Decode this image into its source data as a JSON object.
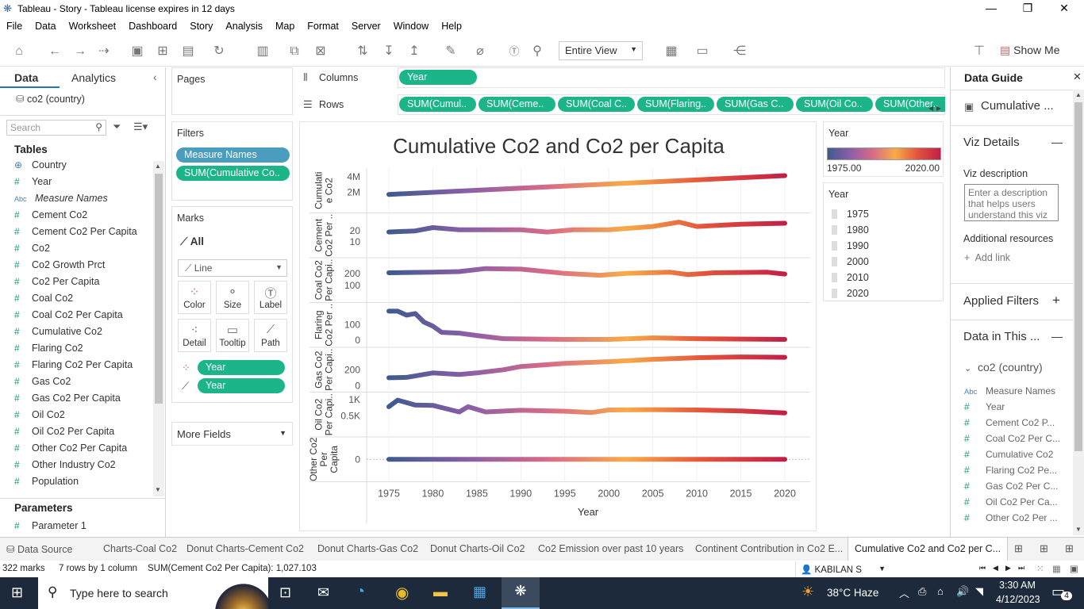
{
  "window": {
    "title": "Tableau - Story - Tableau license expires in 12 days"
  },
  "menu": [
    "File",
    "Data",
    "Worksheet",
    "Dashboard",
    "Story",
    "Analysis",
    "Map",
    "Format",
    "Server",
    "Window",
    "Help"
  ],
  "toolbar": {
    "view_select": "Entire View",
    "show_me": "Show Me"
  },
  "left_panel": {
    "tab_data": "Data",
    "tab_analytics": "Analytics",
    "datasource": "co2 (country)",
    "search_placeholder": "Search",
    "tables_title": "Tables",
    "fields": [
      {
        "type": "geo",
        "name": "Country"
      },
      {
        "type": "num",
        "name": "Year"
      },
      {
        "type": "abc",
        "name": "Measure Names"
      },
      {
        "type": "num",
        "name": "Cement Co2"
      },
      {
        "type": "num",
        "name": "Cement Co2 Per Capita"
      },
      {
        "type": "num",
        "name": "Co2"
      },
      {
        "type": "num",
        "name": "Co2 Growth Prct"
      },
      {
        "type": "num",
        "name": "Co2 Per Capita"
      },
      {
        "type": "num",
        "name": "Coal Co2"
      },
      {
        "type": "num",
        "name": "Coal Co2 Per Capita"
      },
      {
        "type": "num",
        "name": "Cumulative Co2"
      },
      {
        "type": "num",
        "name": "Flaring Co2"
      },
      {
        "type": "num",
        "name": "Flaring Co2 Per Capita"
      },
      {
        "type": "num",
        "name": "Gas Co2"
      },
      {
        "type": "num",
        "name": "Gas Co2 Per Capita"
      },
      {
        "type": "num",
        "name": "Oil Co2"
      },
      {
        "type": "num",
        "name": "Oil Co2 Per Capita"
      },
      {
        "type": "num",
        "name": "Other Co2 Per Capita"
      },
      {
        "type": "num",
        "name": "Other Industry Co2"
      },
      {
        "type": "num",
        "name": "Population"
      }
    ],
    "params_title": "Parameters",
    "param": "Parameter 1"
  },
  "shelves": {
    "pages": "Pages",
    "filters": "Filters",
    "filter_pills": [
      "Measure Names",
      "SUM(Cumulative Co.."
    ],
    "marks": "Marks",
    "marks_all": "All",
    "mark_type": "Line",
    "mark_btns": [
      "Color",
      "Size",
      "Label",
      "Detail",
      "Tooltip",
      "Path"
    ],
    "mark_pills": [
      "Year",
      "Year"
    ],
    "more_fields": "More Fields",
    "columns": "Columns",
    "rows": "Rows",
    "col_pill": "Year",
    "row_pills": [
      "SUM(Cumul..",
      "SUM(Ceme..",
      "SUM(Coal C..",
      "SUM(Flaring..",
      "SUM(Gas C..",
      "SUM(Oil Co..",
      "SUM(Other.."
    ]
  },
  "legend": {
    "title": "Year",
    "min": "1975.00",
    "max": "2020.00",
    "filter_title": "Year",
    "filter_items": [
      "1975",
      "1980",
      "1990",
      "2000",
      "2010",
      "2020"
    ]
  },
  "data_guide": {
    "title": "Data Guide",
    "sheet": "Cumulative ...",
    "viz_details": "Viz Details",
    "viz_desc_label": "Viz description",
    "viz_desc_placeholder": "Enter a description that helps users understand this viz",
    "additional": "Additional resources",
    "add_link": "Add link",
    "applied_filters": "Applied Filters",
    "data_in": "Data in This ...",
    "source": "co2 (country)",
    "fields": [
      {
        "t": "Abc",
        "n": "Measure Names"
      },
      {
        "t": "#",
        "n": "Year"
      },
      {
        "t": "#",
        "n": "Cement Co2 P..."
      },
      {
        "t": "#",
        "n": "Coal Co2 Per C..."
      },
      {
        "t": "#",
        "n": "Cumulative Co2"
      },
      {
        "t": "#",
        "n": "Flaring Co2 Pe..."
      },
      {
        "t": "#",
        "n": "Gas Co2 Per C..."
      },
      {
        "t": "#",
        "n": "Oil Co2 Per Ca..."
      },
      {
        "t": "#",
        "n": "Other Co2 Per ..."
      }
    ]
  },
  "tabs": {
    "datasource": "Data Source",
    "items": [
      "Charts-Coal Co2",
      "Donut Charts-Cement Co2",
      "Donut Charts-Gas Co2",
      "Donut Charts-Oil Co2",
      "Co2 Emission over past 10 years",
      "Continent Contribution in Co2 E...",
      "Cumulative Co2 and Co2 per C..."
    ]
  },
  "status": {
    "marks": "322 marks",
    "rows": "7 rows by 1 column",
    "sum": "SUM(Cement Co2 Per Capita): 1,027.103",
    "user": "KABILAN S"
  },
  "taskbar": {
    "search": "Type here to search",
    "weather": "38°C  Haze",
    "time": "3:30 AM",
    "date": "4/12/2023",
    "notif": "4"
  },
  "chart_data": {
    "type": "line",
    "title": "Cumulative Co2 and Co2 per Capita",
    "xlabel": "Year",
    "x_ticks": [
      "1975",
      "1980",
      "1985",
      "1990",
      "1995",
      "2000",
      "2005",
      "2010",
      "2015",
      "2020"
    ],
    "x_range": [
      1975,
      2020
    ],
    "color_gradient": [
      "#3f5a8f",
      "#8a5fa6",
      "#d86a88",
      "#f6ab49",
      "#e3523c",
      "#c21f47"
    ],
    "panels": [
      {
        "label": [
          "Cumulati",
          "e Co2"
        ],
        "ticks": [
          {
            "v": 2000000,
            "t": "2M"
          },
          {
            "v": 4000000,
            "t": "4M"
          }
        ],
        "ylim": [
          0,
          4500000
        ],
        "x": [
          1975,
          2020
        ],
        "y": [
          1750000,
          4150000
        ]
      },
      {
        "label": [
          "Cement",
          "Co2 Per .."
        ],
        "ticks": [
          {
            "v": 10,
            "t": "10"
          },
          {
            "v": 20,
            "t": "20"
          }
        ],
        "ylim": [
          0,
          32
        ],
        "x": [
          1975,
          1978,
          1980,
          1983,
          1990,
          1993,
          1996,
          2000,
          2005,
          2008,
          2010,
          2015,
          2020
        ],
        "y": [
          19,
          20,
          23,
          21,
          21,
          19,
          21,
          21,
          24,
          28,
          24,
          26,
          27
        ]
      },
      {
        "label": [
          "Coal Co2",
          "Per Capi.."
        ],
        "ticks": [
          {
            "v": 100,
            "t": "100"
          },
          {
            "v": 200,
            "t": "200"
          }
        ],
        "ylim": [
          0,
          290
        ],
        "x": [
          1975,
          1980,
          1983,
          1986,
          1990,
          1995,
          1999,
          2002,
          2007,
          2009,
          2012,
          2018,
          2020
        ],
        "y": [
          205,
          210,
          215,
          240,
          235,
          200,
          185,
          200,
          210,
          190,
          205,
          210,
          195
        ]
      },
      {
        "label": [
          "Flaring",
          "Co2 Per .."
        ],
        "ticks": [
          {
            "v": 0,
            "t": "0"
          },
          {
            "v": 100,
            "t": "100"
          }
        ],
        "ylim": [
          -15,
          210
        ],
        "x": [
          1975,
          1976,
          1977,
          1978,
          1979,
          1980,
          1981,
          1983,
          1985,
          1988,
          1995,
          2000,
          2005,
          2010,
          2020
        ],
        "y": [
          185,
          185,
          160,
          170,
          115,
          90,
          50,
          45,
          30,
          10,
          5,
          5,
          15,
          10,
          5
        ]
      },
      {
        "label": [
          "Gas Co2",
          "Per Capi.."
        ],
        "ticks": [
          {
            "v": 0,
            "t": "0"
          },
          {
            "v": 200,
            "t": "200"
          }
        ],
        "ylim": [
          -20,
          420
        ],
        "x": [
          1975,
          1977,
          1980,
          1983,
          1985,
          1988,
          1990,
          1995,
          2000,
          2005,
          2010,
          2015,
          2020
        ],
        "y": [
          100,
          105,
          160,
          140,
          160,
          200,
          240,
          280,
          300,
          330,
          350,
          360,
          355
        ]
      },
      {
        "label": [
          "Oil Co2",
          "Per Capi.."
        ],
        "ticks": [
          {
            "v": 500,
            "t": "0.5K"
          },
          {
            "v": 1000,
            "t": "1K"
          }
        ],
        "ylim": [
          0,
          1080
        ],
        "x": [
          1975,
          1976,
          1978,
          1980,
          1983,
          1984,
          1986,
          1990,
          1995,
          1998,
          2000,
          2005,
          2010,
          2015,
          2020
        ],
        "y": [
          780,
          980,
          830,
          820,
          620,
          780,
          620,
          670,
          640,
          600,
          680,
          690,
          680,
          650,
          590
        ]
      },
      {
        "label": [
          "Other Co2",
          "Per",
          "Capita"
        ],
        "ticks": [
          {
            "v": 0,
            "t": "0"
          }
        ],
        "ylim": [
          -1,
          1
        ],
        "x": [
          1975,
          2020
        ],
        "y": [
          0,
          0
        ]
      }
    ]
  }
}
